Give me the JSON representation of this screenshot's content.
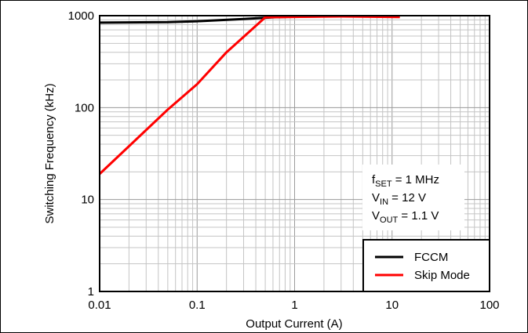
{
  "chart_data": {
    "type": "line",
    "xlabel": "Output Current (A)",
    "ylabel": "Switching Frequency (kHz)",
    "xscale": "log",
    "yscale": "log",
    "xlim": [
      0.01,
      100
    ],
    "ylim": [
      1,
      1000
    ],
    "grid": true,
    "x_ticks": [
      "0.01",
      "0.1",
      "1",
      "10",
      "100"
    ],
    "y_ticks": [
      "1",
      "10",
      "100",
      "1000"
    ],
    "legend_position": "bottom-right",
    "series": [
      {
        "name": "FCCM",
        "color": "#000000",
        "points": [
          [
            0.01,
            840
          ],
          [
            0.05,
            850
          ],
          [
            0.1,
            870
          ],
          [
            0.3,
            920
          ],
          [
            0.6,
            960
          ],
          [
            1,
            975
          ],
          [
            3,
            985
          ],
          [
            12,
            975
          ]
        ]
      },
      {
        "name": "Skip Mode",
        "color": "#ff0000",
        "points": [
          [
            0.01,
            19
          ],
          [
            0.02,
            38
          ],
          [
            0.05,
            95
          ],
          [
            0.1,
            180
          ],
          [
            0.2,
            400
          ],
          [
            0.5,
            960
          ],
          [
            1,
            970
          ],
          [
            3,
            980
          ],
          [
            12,
            965
          ]
        ]
      }
    ],
    "annotation": [
      {
        "main": "f",
        "sub": "SET",
        "rest": " = 1 MHz"
      },
      {
        "main": "V",
        "sub": "IN",
        "rest": " = 12 V"
      },
      {
        "main": "V",
        "sub": "OUT",
        "rest": " = 1.1 V"
      }
    ]
  }
}
